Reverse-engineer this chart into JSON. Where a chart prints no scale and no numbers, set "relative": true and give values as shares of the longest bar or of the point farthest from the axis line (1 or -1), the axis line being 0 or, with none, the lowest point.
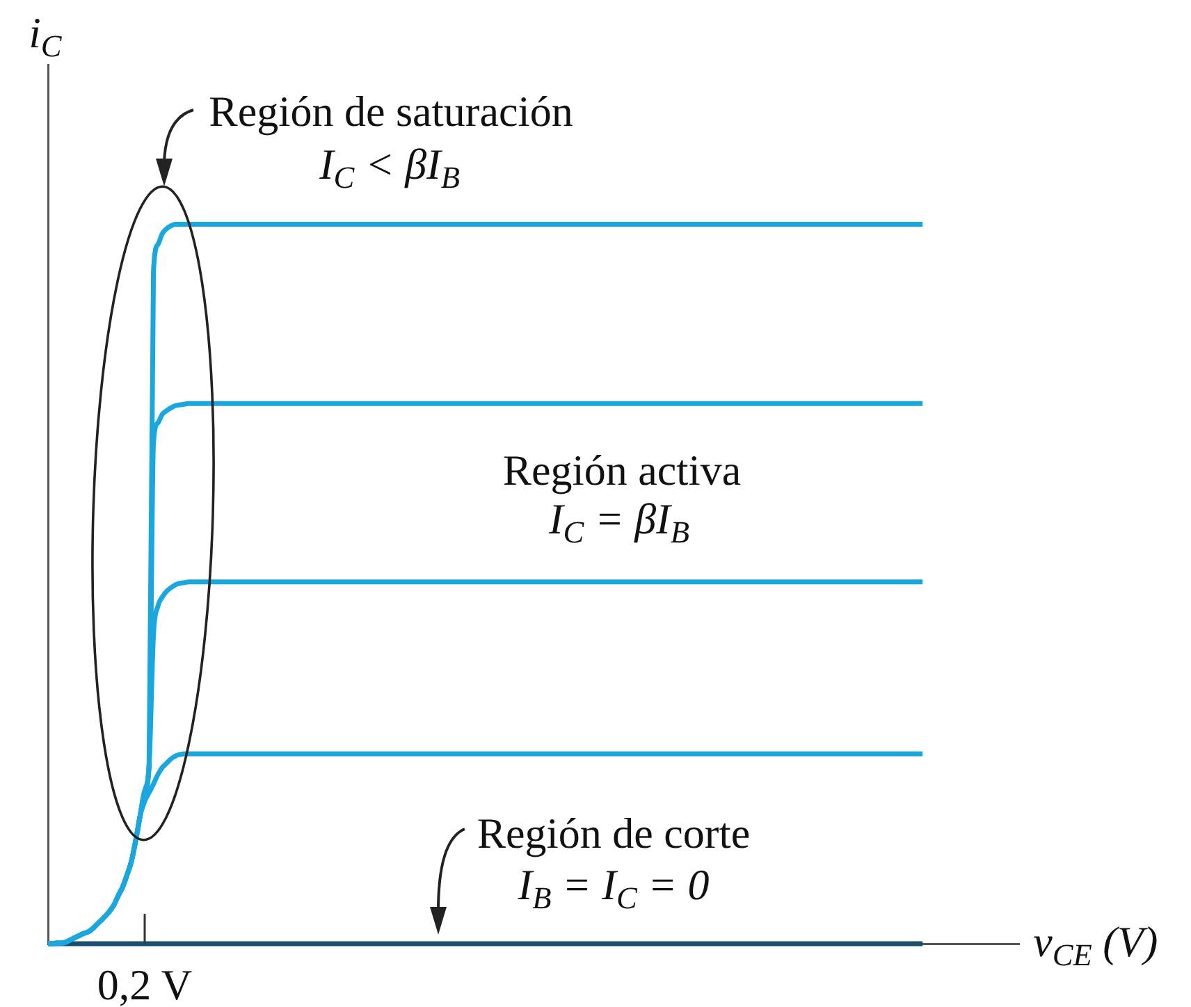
{
  "chart_data": {
    "type": "line",
    "xlabel": "v$_{CE}$ (V)",
    "ylabel": "i$_{C}$",
    "relative": true,
    "marker": "none",
    "line_style": "solid",
    "categories": [
      null,
      null,
      null,
      null,
      null,
      null,
      null,
      null,
      null,
      null,
      null,
      null,
      null,
      null,
      null,
      null,
      null,
      null,
      null,
      null,
      null,
      null,
      null,
      null,
      null,
      null,
      null,
      null,
      null,
      null,
      null,
      null,
      null,
      null,
      null,
      null,
      null,
      null,
      null,
      null,
      null,
      null,
      null,
      null,
      null,
      null,
      null,
      null,
      null,
      null,
      null,
      null,
      null,
      null,
      null,
      null,
      null,
      null,
      null,
      null,
      null,
      null,
      null,
      null,
      null,
      null,
      null,
      null,
      null,
      null,
      null,
      null,
      null,
      null,
      null,
      null,
      null,
      null,
      null,
      null,
      null,
      null,
      null,
      null,
      null,
      null,
      null,
      null,
      null,
      null,
      null,
      null,
      null,
      null,
      null,
      null,
      null,
      null,
      null,
      null,
      null,
      null,
      null,
      null,
      null,
      null,
      null,
      null,
      null,
      null,
      null,
      null,
      null,
      null,
      null,
      null,
      null,
      null,
      null,
      null,
      null,
      null,
      null,
      null,
      null,
      null,
      null,
      null,
      null,
      null,
      null,
      null,
      null,
      null,
      null,
      null,
      null,
      null,
      null,
      null,
      null,
      null,
      null,
      null,
      null,
      null,
      null,
      null,
      null,
      null,
      null,
      null,
      null,
      null,
      null,
      null,
      null,
      null,
      null,
      null,
      null,
      null,
      null,
      null,
      null,
      null,
      null,
      null,
      null,
      null,
      null,
      null,
      null,
      null,
      null,
      null,
      null,
      null,
      null,
      null,
      null,
      null,
      null,
      null,
      null,
      null,
      null,
      null,
      null,
      null,
      null,
      null,
      null,
      null,
      null,
      null,
      null,
      null,
      null,
      null,
      null,
      null,
      null,
      null,
      null,
      null,
      null,
      null,
      null,
      null,
      null,
      null,
      null,
      null,
      null,
      null,
      null,
      null,
      null,
      null,
      null,
      null
    ],
    "series": [
      {
        "color": "#1aa7e0",
        "values": [
          0,
          0,
          0.001,
          0.001,
          0.002,
          0.005,
          0.008,
          0.011,
          0.014,
          0.016,
          0.02,
          0.026,
          0.032,
          0.038,
          0.045,
          0.054,
          0.067,
          0.079,
          0.096,
          0.115,
          0.145,
          0.179,
          0.212,
          0.248,
          0.935,
          0.972,
          0.987,
          0.994,
          0.998,
          1,
          1,
          1,
          1,
          1,
          1,
          1,
          1,
          1,
          1,
          1,
          1,
          1,
          1,
          1,
          1,
          1,
          1,
          1,
          1,
          1,
          1,
          1,
          1,
          1,
          1,
          1,
          1,
          1,
          1,
          1,
          1,
          1,
          1,
          1,
          1,
          1,
          1,
          1,
          1,
          1,
          1,
          1,
          1,
          1,
          1,
          1,
          1,
          1,
          1,
          1,
          1,
          1,
          1,
          1,
          1,
          1,
          1,
          1,
          1,
          1,
          1,
          1,
          1,
          1,
          1,
          1,
          1,
          1,
          1,
          1,
          1,
          1,
          1,
          1,
          1,
          1,
          1,
          1,
          1,
          1,
          1,
          1,
          1,
          1,
          1,
          1,
          1,
          1,
          1,
          1,
          1,
          1,
          1,
          1,
          1,
          1,
          1,
          1,
          1,
          1,
          1,
          1,
          1,
          1,
          1,
          1,
          1,
          1,
          1,
          1,
          1,
          1,
          1,
          1,
          1,
          1,
          1,
          1,
          1,
          1,
          1,
          1,
          1,
          1,
          1,
          1,
          1,
          1,
          1,
          1,
          1,
          1,
          1,
          1,
          1,
          1,
          1,
          1,
          1,
          1,
          1,
          1,
          1,
          1,
          1,
          1,
          1,
          1,
          1,
          1,
          1,
          1,
          1,
          1,
          1,
          1,
          1,
          1,
          1,
          1,
          1,
          1,
          1,
          1,
          1,
          1,
          1,
          1,
          1,
          1,
          null,
          null,
          null,
          null,
          null,
          null,
          null,
          null,
          null,
          null,
          null,
          null,
          null,
          null,
          null,
          null,
          null,
          null,
          null,
          null,
          null,
          null
        ]
      },
      {
        "color": "#1aa7e0",
        "values": [
          0,
          0,
          0.001,
          0.001,
          0.002,
          0.005,
          0.008,
          0.011,
          0.014,
          0.016,
          0.02,
          0.026,
          0.032,
          0.038,
          0.045,
          0.054,
          0.067,
          0.079,
          0.096,
          0.115,
          0.145,
          0.179,
          0.212,
          0.248,
          0.697,
          0.724,
          0.736,
          0.741,
          0.745,
          0.748,
          0.749,
          0.75,
          0.751,
          0.751,
          0.751,
          0.751,
          0.751,
          0.751,
          0.751,
          0.751,
          0.751,
          0.751,
          0.751,
          0.751,
          0.751,
          0.751,
          0.751,
          0.751,
          0.751,
          0.751,
          0.751,
          0.751,
          0.751,
          0.751,
          0.751,
          0.751,
          0.751,
          0.751,
          0.751,
          0.751,
          0.751,
          0.751,
          0.751,
          0.751,
          0.751,
          0.751,
          0.751,
          0.751,
          0.751,
          0.751,
          0.751,
          0.751,
          0.751,
          0.751,
          0.751,
          0.751,
          0.751,
          0.751,
          0.751,
          0.751,
          0.751,
          0.751,
          0.751,
          0.751,
          0.751,
          0.751,
          0.751,
          0.751,
          0.751,
          0.751,
          0.751,
          0.751,
          0.751,
          0.751,
          0.751,
          0.751,
          0.751,
          0.751,
          0.751,
          0.751,
          0.751,
          0.751,
          0.751,
          0.751,
          0.751,
          0.751,
          0.751,
          0.751,
          0.751,
          0.751,
          0.751,
          0.751,
          0.751,
          0.751,
          0.751,
          0.751,
          0.751,
          0.751,
          0.751,
          0.751,
          0.751,
          0.751,
          0.751,
          0.751,
          0.751,
          0.751,
          0.751,
          0.751,
          0.751,
          0.751,
          0.751,
          0.751,
          0.751,
          0.751,
          0.751,
          0.751,
          0.751,
          0.751,
          0.751,
          0.751,
          0.751,
          0.751,
          0.751,
          0.751,
          0.751,
          0.751,
          0.751,
          0.751,
          0.751,
          0.751,
          0.751,
          0.751,
          0.751,
          0.751,
          0.751,
          0.751,
          0.751,
          0.751,
          0.751,
          0.751,
          0.751,
          0.751,
          0.751,
          0.751,
          0.751,
          0.751,
          0.751,
          0.751,
          0.751,
          0.751,
          0.751,
          0.751,
          0.751,
          0.751,
          0.751,
          0.751,
          0.751,
          0.751,
          0.751,
          0.751,
          0.751,
          0.751,
          0.751,
          0.751,
          0.751,
          0.751,
          0.751,
          0.751,
          0.751,
          0.751,
          0.751,
          0.751,
          0.751,
          0.751,
          0.751,
          0.751,
          0.751,
          0.751,
          0.751,
          0.751,
          null,
          null,
          null,
          null,
          null,
          null,
          null,
          null,
          null,
          null,
          null,
          null,
          null,
          null,
          null,
          null,
          null,
          null,
          null,
          null,
          null,
          null
        ]
      },
      {
        "color": "#1aa7e0",
        "values": [
          0,
          0,
          0.001,
          0.001,
          0.002,
          0.005,
          0.008,
          0.011,
          0.014,
          0.016,
          0.02,
          0.026,
          0.032,
          0.038,
          0.045,
          0.054,
          0.067,
          0.079,
          0.096,
          0.115,
          0.145,
          0.179,
          0.212,
          0.248,
          0.43,
          0.469,
          0.482,
          0.49,
          0.495,
          0.499,
          0.501,
          0.502,
          0.503,
          0.503,
          0.503,
          0.503,
          0.503,
          0.503,
          0.503,
          0.503,
          0.503,
          0.503,
          0.503,
          0.503,
          0.503,
          0.503,
          0.503,
          0.503,
          0.503,
          0.503,
          0.503,
          0.503,
          0.503,
          0.503,
          0.503,
          0.503,
          0.503,
          0.503,
          0.503,
          0.503,
          0.503,
          0.503,
          0.503,
          0.503,
          0.503,
          0.503,
          0.503,
          0.503,
          0.503,
          0.503,
          0.503,
          0.503,
          0.503,
          0.503,
          0.503,
          0.503,
          0.503,
          0.503,
          0.503,
          0.503,
          0.503,
          0.503,
          0.503,
          0.503,
          0.503,
          0.503,
          0.503,
          0.503,
          0.503,
          0.503,
          0.503,
          0.503,
          0.503,
          0.503,
          0.503,
          0.503,
          0.503,
          0.503,
          0.503,
          0.503,
          0.503,
          0.503,
          0.503,
          0.503,
          0.503,
          0.503,
          0.503,
          0.503,
          0.503,
          0.503,
          0.503,
          0.503,
          0.503,
          0.503,
          0.503,
          0.503,
          0.503,
          0.503,
          0.503,
          0.503,
          0.503,
          0.503,
          0.503,
          0.503,
          0.503,
          0.503,
          0.503,
          0.503,
          0.503,
          0.503,
          0.503,
          0.503,
          0.503,
          0.503,
          0.503,
          0.503,
          0.503,
          0.503,
          0.503,
          0.503,
          0.503,
          0.503,
          0.503,
          0.503,
          0.503,
          0.503,
          0.503,
          0.503,
          0.503,
          0.503,
          0.503,
          0.503,
          0.503,
          0.503,
          0.503,
          0.503,
          0.503,
          0.503,
          0.503,
          0.503,
          0.503,
          0.503,
          0.503,
          0.503,
          0.503,
          0.503,
          0.503,
          0.503,
          0.503,
          0.503,
          0.503,
          0.503,
          0.503,
          0.503,
          0.503,
          0.503,
          0.503,
          0.503,
          0.503,
          0.503,
          0.503,
          0.503,
          0.503,
          0.503,
          0.503,
          0.503,
          0.503,
          0.503,
          0.503,
          0.503,
          0.503,
          0.503,
          0.503,
          0.503,
          0.503,
          0.503,
          0.503,
          0.503,
          0.503,
          0.503,
          null,
          null,
          null,
          null,
          null,
          null,
          null,
          null,
          null,
          null,
          null,
          null,
          null,
          null,
          null,
          null,
          null,
          null,
          null,
          null,
          null,
          null
        ]
      },
      {
        "color": "#1aa7e0",
        "values": [
          0,
          0,
          0.001,
          0.001,
          0.002,
          0.005,
          0.008,
          0.011,
          0.014,
          0.016,
          0.02,
          0.026,
          0.032,
          0.038,
          0.045,
          0.054,
          0.067,
          0.079,
          0.096,
          0.115,
          0.145,
          0.179,
          0.198,
          0.21,
          0.222,
          0.235,
          0.245,
          0.251,
          0.257,
          0.261,
          0.263,
          0.264,
          0.264,
          0.264,
          0.264,
          0.264,
          0.264,
          0.264,
          0.264,
          0.264,
          0.264,
          0.264,
          0.264,
          0.264,
          0.264,
          0.264,
          0.264,
          0.264,
          0.264,
          0.264,
          0.264,
          0.264,
          0.264,
          0.264,
          0.264,
          0.264,
          0.264,
          0.264,
          0.264,
          0.264,
          0.264,
          0.264,
          0.264,
          0.264,
          0.264,
          0.264,
          0.264,
          0.264,
          0.264,
          0.264,
          0.264,
          0.264,
          0.264,
          0.264,
          0.264,
          0.264,
          0.264,
          0.264,
          0.264,
          0.264,
          0.264,
          0.264,
          0.264,
          0.264,
          0.264,
          0.264,
          0.264,
          0.264,
          0.264,
          0.264,
          0.264,
          0.264,
          0.264,
          0.264,
          0.264,
          0.264,
          0.264,
          0.264,
          0.264,
          0.264,
          0.264,
          0.264,
          0.264,
          0.264,
          0.264,
          0.264,
          0.264,
          0.264,
          0.264,
          0.264,
          0.264,
          0.264,
          0.264,
          0.264,
          0.264,
          0.264,
          0.264,
          0.264,
          0.264,
          0.264,
          0.264,
          0.264,
          0.264,
          0.264,
          0.264,
          0.264,
          0.264,
          0.264,
          0.264,
          0.264,
          0.264,
          0.264,
          0.264,
          0.264,
          0.264,
          0.264,
          0.264,
          0.264,
          0.264,
          0.264,
          0.264,
          0.264,
          0.264,
          0.264,
          0.264,
          0.264,
          0.264,
          0.264,
          0.264,
          0.264,
          0.264,
          0.264,
          0.264,
          0.264,
          0.264,
          0.264,
          0.264,
          0.264,
          0.264,
          0.264,
          0.264,
          0.264,
          0.264,
          0.264,
          0.264,
          0.264,
          0.264,
          0.264,
          0.264,
          0.264,
          0.264,
          0.264,
          0.264,
          0.264,
          0.264,
          0.264,
          0.264,
          0.264,
          0.264,
          0.264,
          0.264,
          0.264,
          0.264,
          0.264,
          0.264,
          0.264,
          0.264,
          0.264,
          0.264,
          0.264,
          0.264,
          0.264,
          0.264,
          0.264,
          0.264,
          0.264,
          0.264,
          0.264,
          0.264,
          0.264,
          null,
          null,
          null,
          null,
          null,
          null,
          null,
          null,
          null,
          null,
          null,
          null,
          null,
          null,
          null,
          null,
          null,
          null,
          null,
          null,
          null,
          null
        ]
      },
      {
        "color": "#1a4e6e",
        "values": [
          0,
          0,
          0,
          0,
          0,
          0,
          0,
          0,
          0,
          0,
          0,
          0,
          0,
          0,
          0,
          0,
          0,
          0,
          0,
          0,
          0,
          0,
          0,
          0,
          0,
          0,
          0,
          0,
          0,
          0,
          0,
          0,
          0,
          0,
          0,
          0,
          0,
          0,
          0,
          0,
          0,
          0,
          0,
          0,
          0,
          0,
          0,
          0,
          0,
          0,
          0,
          0,
          0,
          0,
          0,
          0,
          0,
          0,
          0,
          0,
          0,
          0,
          0,
          0,
          0,
          0,
          0,
          0,
          0,
          0,
          0,
          0,
          0,
          0,
          0,
          0,
          0,
          0,
          0,
          0,
          0,
          0,
          0,
          0,
          0,
          0,
          0,
          0,
          0,
          0,
          0,
          0,
          0,
          0,
          0,
          0,
          0,
          0,
          0,
          0,
          0,
          0,
          0,
          0,
          0,
          0,
          0,
          0,
          0,
          0,
          0,
          0,
          0,
          0,
          0,
          0,
          0,
          0,
          0,
          0,
          0,
          0,
          0,
          0,
          0,
          0,
          0,
          0,
          0,
          0,
          0,
          0,
          0,
          0,
          0,
          0,
          0,
          0,
          0,
          0,
          0,
          0,
          0,
          0,
          0,
          0,
          0,
          0,
          0,
          0,
          0,
          0,
          0,
          0,
          0,
          0,
          0,
          0,
          0,
          0,
          0,
          0,
          0,
          0,
          0,
          0,
          0,
          0,
          0,
          0,
          0,
          0,
          0,
          0,
          0,
          0,
          0,
          0,
          0,
          0,
          0,
          0,
          0,
          0,
          0,
          0,
          0,
          0,
          0,
          0,
          0,
          0,
          0,
          0,
          0,
          0,
          0,
          0,
          0,
          0,
          null,
          null,
          null,
          null,
          null,
          null,
          null,
          null,
          null,
          null,
          null,
          null,
          null,
          null,
          null,
          null,
          null,
          null,
          null,
          null,
          null,
          null
        ]
      }
    ],
    "annotations": [
      "Región de saturación",
      "I$_{C}$ < βI$_{B}$",
      "Región activa",
      "I$_{C}$ = βI$_{B}$",
      "Región de corte",
      "I$_{B}$ = I$_{C}$ = 0",
      "0,2 V"
    ]
  }
}
